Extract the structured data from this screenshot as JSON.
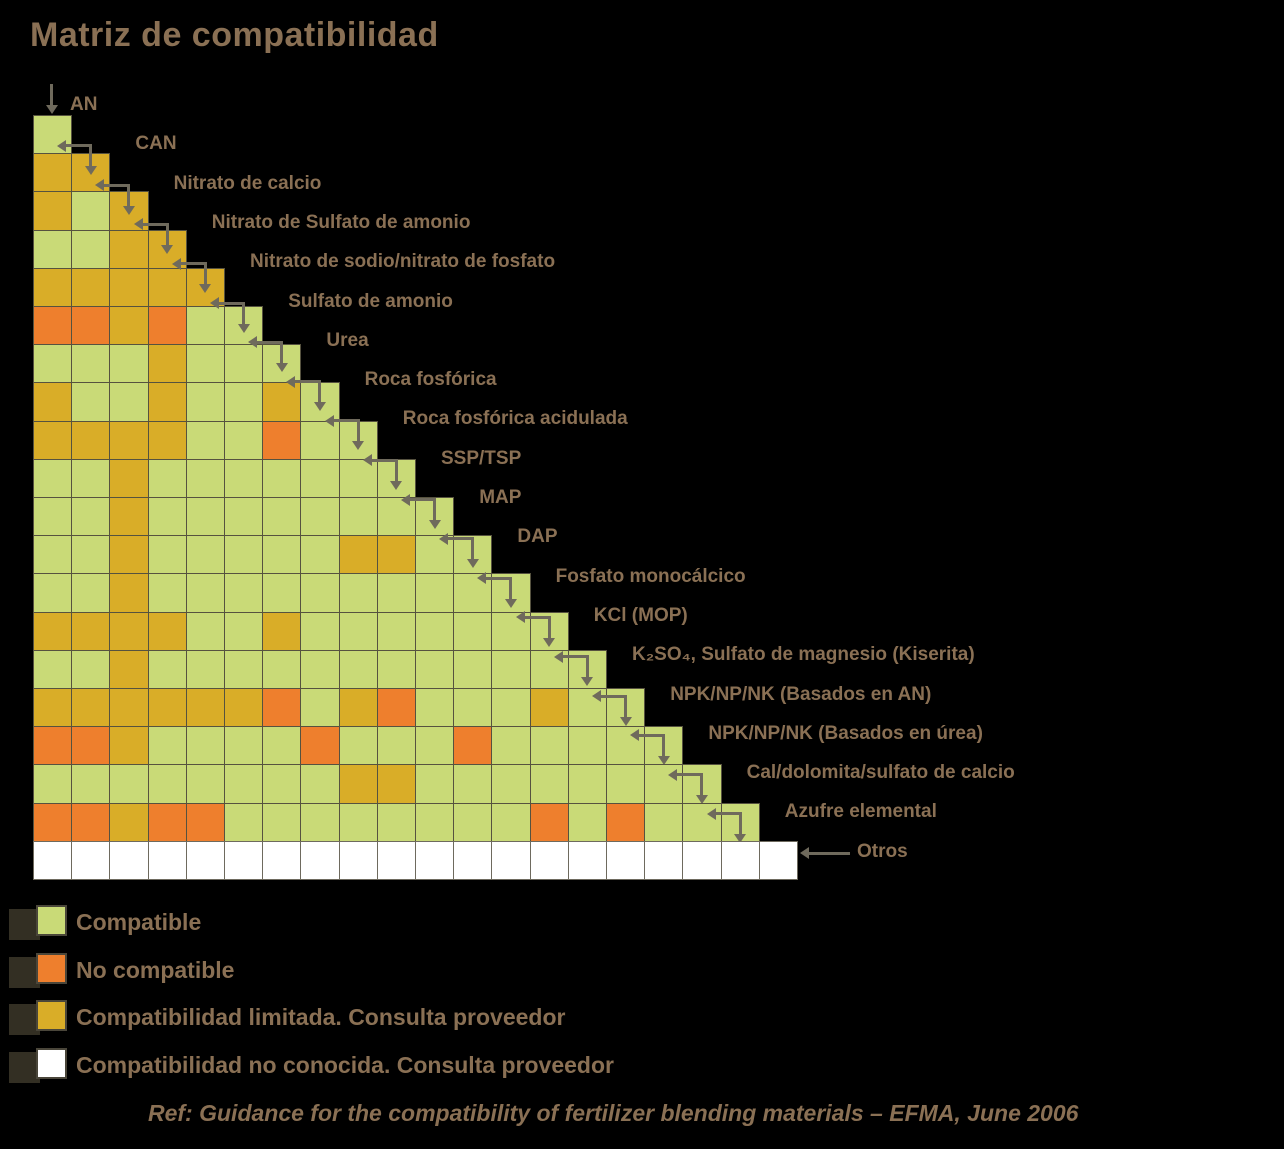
{
  "title": "Matriz de compatibilidad",
  "chart_data": {
    "type": "heatmap",
    "title": "Matriz de compatibilidad",
    "legend_position": "bottom",
    "materials": [
      "AN",
      "CAN",
      "Nitrato de calcio",
      "Nitrato de Sulfato de amonio",
      "Nitrato de sodio/nitrato de fosfato",
      "Sulfato de amonio",
      "Urea",
      "Roca fosfórica",
      "Roca fosfórica acidulada",
      "SSP/TSP",
      "MAP",
      "DAP",
      "Fosfato monocálcico",
      "KCl (MOP)",
      "K₂SO₄, Sulfato de magnesio (Kiserita)",
      "NPK/NP/NK (Basados en AN)",
      "NPK/NP/NK (Basados en úrea)",
      "Cal/dolomita/sulfato de calcio",
      "Azufre elemental",
      "Otros"
    ],
    "rows": [
      "G",
      "YY",
      "YGY",
      "GGYY",
      "YYYYY",
      "OOYOGG",
      "GGGYGGG",
      "YGGYGGYG",
      "YYYYGGOGG",
      "GGYGGGGGGG",
      "GGYGGGGGGGG",
      "GGYGGGGGYYGG",
      "GGYGGGGGGGGGG",
      "YYYYGGYGGGGGGG",
      "GGYGGGGGGGGGGGG",
      "YYYYYYOGYOGGGYGG",
      "OOYGGGGOGGGOGGGGG",
      "GGGGGGGGYYGGGGGGGG",
      "OOYOOGGGGGGGGOGOGGG",
      "WWWWWWWWWWWWWWWWWWWW"
    ],
    "value_meanings": {
      "G": "Compatible",
      "O": "No compatible",
      "Y": "Compatibilidad limitada",
      "W": "Compatibilidad no conocida"
    }
  },
  "legend": {
    "items": [
      {
        "key": "G",
        "label": "Compatible"
      },
      {
        "key": "O",
        "label": "No compatible"
      },
      {
        "key": "Y",
        "label": "Compatibilidad limitada. Consulta proveedor"
      },
      {
        "key": "W",
        "label": "Compatibilidad no conocida. Consulta proveedor"
      }
    ]
  },
  "footer": {
    "reference": "Ref: Guidance for the compatibility of fertilizer blending materials – EFMA, June 2006"
  },
  "colors": {
    "G": "#c9da77",
    "Y": "#d9ad28",
    "O": "#ee7f2d",
    "W": "#ffffff",
    "label": "#8a7054",
    "border": "#56523f",
    "arrow": "#6f6a5c",
    "background": "#000000"
  }
}
